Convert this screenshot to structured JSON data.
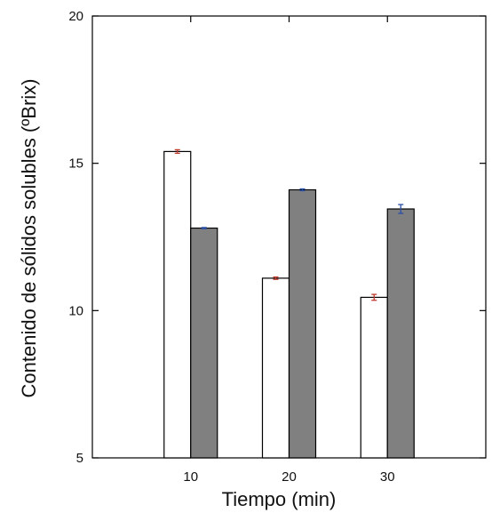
{
  "chart_data": {
    "type": "bar",
    "title": "",
    "xlabel": "Tiempo (min)",
    "ylabel": "Contenido de sólidos solubles (ºBrix)",
    "ylim": [
      5,
      20
    ],
    "yticks": [
      5,
      10,
      15,
      20
    ],
    "categories": [
      "10",
      "20",
      "30"
    ],
    "series": [
      {
        "values": [
          15.4,
          11.1,
          10.45
        ],
        "errors": [
          0.06,
          0.04,
          0.1
        ],
        "color": "#ffffff",
        "error_color": "#c0392b"
      },
      {
        "values": [
          12.8,
          14.1,
          13.45
        ],
        "errors": [
          0.02,
          0.03,
          0.15
        ],
        "color": "#808080",
        "error_color": "#2a4fa8"
      }
    ],
    "grid": false,
    "legend": "none"
  }
}
